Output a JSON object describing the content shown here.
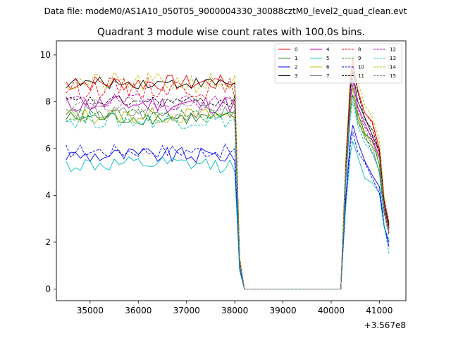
{
  "header": {
    "data_file_label": "Data file: modeM0/AS1A10_050T05_9000004330_30088cztM0_level2_quad_clean.evt"
  },
  "chart_data": {
    "type": "line",
    "title": "Quadrant 3 module wise count rates with 100.0s bins.",
    "xlabel": "",
    "ylabel": "",
    "x_offset_label": "+3.567e8",
    "xlim": [
      34300,
      41550
    ],
    "ylim": [
      -0.5,
      10.6
    ],
    "x_ticks": [
      35000,
      36000,
      37000,
      38000,
      39000,
      40000,
      41000
    ],
    "y_ticks": [
      0,
      2,
      4,
      6,
      8,
      10
    ],
    "x_start": 34500,
    "x_step": 100,
    "series": [
      {
        "name": "0",
        "color": "#ff0000",
        "dash": "solid",
        "plateau": 8.8,
        "jitter": 0.35,
        "peak": 9.8,
        "end": 2.7
      },
      {
        "name": "1",
        "color": "#008000",
        "dash": "solid",
        "plateau": 7.3,
        "jitter": 0.3,
        "peak": 8.6,
        "end": 2.4
      },
      {
        "name": "2",
        "color": "#0000ff",
        "dash": "solid",
        "plateau": 5.7,
        "jitter": 0.35,
        "peak": 7.0,
        "end": 1.8
      },
      {
        "name": "3",
        "color": "#000000",
        "dash": "solid",
        "plateau": 8.8,
        "jitter": 0.25,
        "peak": 9.3,
        "end": 2.8
      },
      {
        "name": "4",
        "color": "#bf00bf",
        "dash": "solid",
        "plateau": 7.9,
        "jitter": 0.4,
        "peak": 8.9,
        "end": 2.6
      },
      {
        "name": "5",
        "color": "#00bfbf",
        "dash": "solid",
        "plateau": 5.3,
        "jitter": 0.35,
        "peak": 6.3,
        "end": 2.1
      },
      {
        "name": "6",
        "color": "#bfbf00",
        "dash": "solid",
        "plateau": 7.4,
        "jitter": 0.35,
        "peak": 8.6,
        "end": 2.5
      },
      {
        "name": "7",
        "color": "#808080",
        "dash": "solid",
        "plateau": 7.5,
        "jitter": 0.35,
        "peak": 8.3,
        "end": 2.4
      },
      {
        "name": "8",
        "color": "#ff0000",
        "dash": "dashed",
        "plateau": 8.6,
        "jitter": 0.45,
        "peak": 9.6,
        "end": 2.7
      },
      {
        "name": "9",
        "color": "#008000",
        "dash": "dashed",
        "plateau": 7.4,
        "jitter": 0.3,
        "peak": 8.3,
        "end": 2.3
      },
      {
        "name": "10",
        "color": "#0000ff",
        "dash": "dashed",
        "plateau": 5.9,
        "jitter": 0.3,
        "peak": 6.7,
        "end": 2.0
      },
      {
        "name": "11",
        "color": "#000000",
        "dash": "dashed",
        "plateau": 8.0,
        "jitter": 0.25,
        "peak": 9.5,
        "end": 2.6
      },
      {
        "name": "12",
        "color": "#bf00bf",
        "dash": "dashed",
        "plateau": 8.0,
        "jitter": 0.35,
        "peak": 9.0,
        "end": 2.4
      },
      {
        "name": "13",
        "color": "#00bfbf",
        "dash": "dashed",
        "plateau": 7.2,
        "jitter": 0.35,
        "peak": 8.0,
        "end": 1.5
      },
      {
        "name": "14",
        "color": "#bfbf00",
        "dash": "dashed",
        "plateau": 8.8,
        "jitter": 0.45,
        "peak": 10.0,
        "end": 2.9
      },
      {
        "name": "15",
        "color": "#808080",
        "dash": "dashed",
        "plateau": 7.9,
        "jitter": 0.3,
        "peak": 8.7,
        "end": 2.5
      }
    ]
  }
}
